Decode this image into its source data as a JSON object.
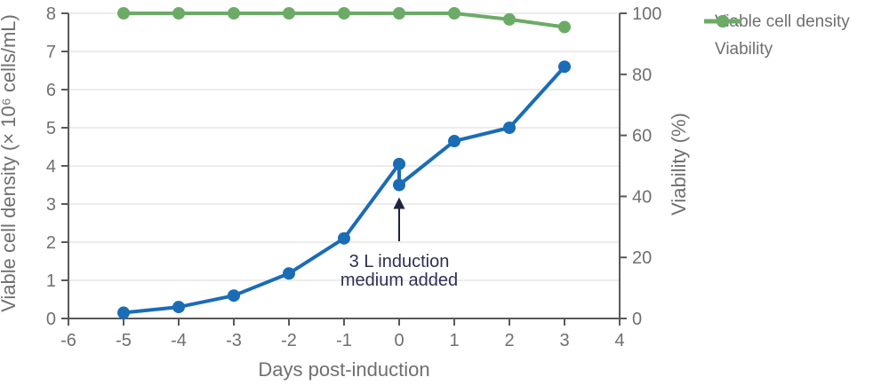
{
  "palette": {
    "background": "#ffffff",
    "axis_line": "#595959",
    "tick_label": "#6f6f6f",
    "axis_title": "#6f6f6f",
    "grid": "#d9d9d9",
    "series_blue": "#1a6cb5",
    "series_green": "#6bab66",
    "annotation_text": "#2f2e55",
    "annotation_arrow": "#1f2342"
  },
  "chart_data": {
    "type": "line",
    "title": "",
    "xlabel": "Days post-induction",
    "ylabel_left": "Viable cell density (× 10⁶ cells/mL)",
    "ylabel_right": "Viability (%)",
    "xlim": [
      -6,
      4
    ],
    "ylim_left": [
      0,
      8
    ],
    "ylim_right": [
      0,
      100
    ],
    "xticks": [
      -6,
      -5,
      -4,
      -3,
      -2,
      -1,
      0,
      1,
      2,
      3,
      4
    ],
    "yticks_left": [
      0,
      1,
      2,
      3,
      4,
      5,
      6,
      7,
      8
    ],
    "yticks_right": [
      0,
      20,
      40,
      60,
      80,
      100
    ],
    "grid": "horizontal gridlines at each left-axis unit",
    "legend_position": "outside top-right",
    "series": [
      {
        "name": "Viable cell density",
        "axis": "left",
        "color": "#1a6cb5",
        "x": [
          -5,
          -4,
          -3,
          -2,
          -1,
          0,
          0,
          1,
          2,
          3
        ],
        "y": [
          0.15,
          0.3,
          0.6,
          1.18,
          2.1,
          4.05,
          3.5,
          4.65,
          5.0,
          6.6
        ],
        "note": "two points at day 0: before and after medium addition"
      },
      {
        "name": "Viability",
        "axis": "right",
        "color": "#6bab66",
        "x": [
          -5,
          -4,
          -3,
          -2,
          -1,
          0,
          1,
          2,
          3
        ],
        "y": [
          100,
          100,
          100,
          100,
          100,
          100,
          100,
          98,
          95.5
        ]
      }
    ],
    "annotation": {
      "line1": "3 L induction",
      "line2": "medium added",
      "x": 0,
      "points_to_value_left_axis": 3.5
    }
  }
}
